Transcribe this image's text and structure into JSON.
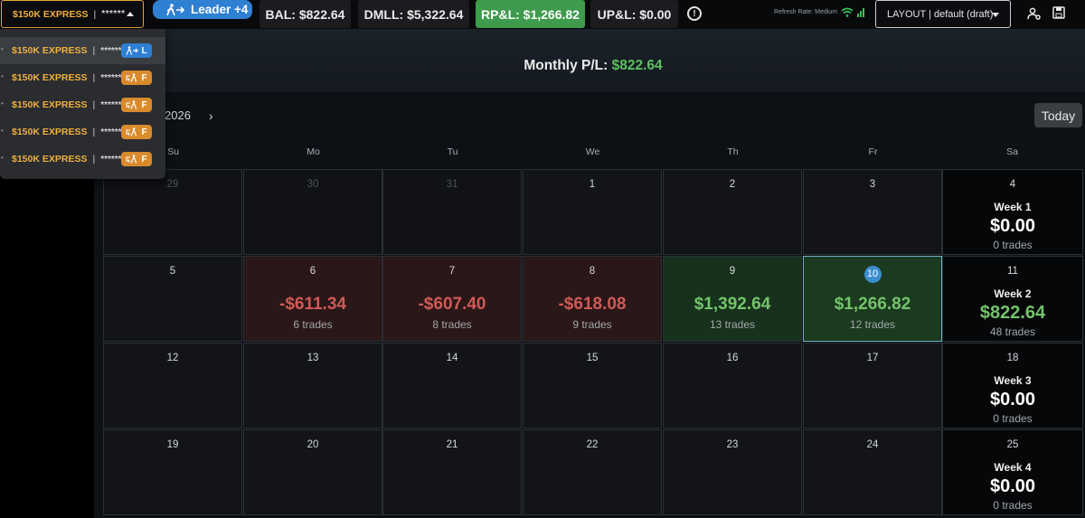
{
  "topbar": {
    "account": {
      "name": "$150K EXPRESS",
      "separator": "|",
      "masked": "******"
    },
    "leader_label": "Leader +4",
    "stats": [
      {
        "label": "BAL: $822.64"
      },
      {
        "label": "DMLL: $5,322.64"
      },
      {
        "label": "RP&L: $1,266.82"
      },
      {
        "label": "UP&L: $0.00"
      }
    ],
    "refresh_rate": "Refresh Rate: Medium",
    "layout": "LAYOUT | default (draft)"
  },
  "dropdown": {
    "items": [
      {
        "name": "$150K EXPRESS",
        "masked": "******",
        "role": "L",
        "role_type": "leader"
      },
      {
        "name": "$150K EXPRESS",
        "masked": "******",
        "role": "F",
        "role_type": "follower"
      },
      {
        "name": "$150K EXPRESS",
        "masked": "******",
        "role": "F",
        "role_type": "follower"
      },
      {
        "name": "$150K EXPRESS",
        "masked": "******",
        "role": "F",
        "role_type": "follower"
      },
      {
        "name": "$150K EXPRESS",
        "masked": "******",
        "role": "F",
        "role_type": "follower"
      }
    ]
  },
  "calendar": {
    "monthly_label": "Monthly P/L:",
    "monthly_value": "$822.64",
    "month_label": "2026",
    "today_label": "Today",
    "days_of_week": [
      "Su",
      "Mo",
      "Tu",
      "We",
      "Th",
      "Fr",
      "Sa"
    ],
    "weeks": [
      {
        "days": [
          {
            "day": "29",
            "state": "outside"
          },
          {
            "day": "30",
            "state": "outside"
          },
          {
            "day": "31",
            "state": "outside"
          },
          {
            "day": "1",
            "state": "normal"
          },
          {
            "day": "2",
            "state": "normal"
          },
          {
            "day": "3",
            "state": "normal"
          }
        ],
        "summary": {
          "day": "4",
          "label": "Week 1",
          "amount": "$0.00",
          "trades": "0 trades",
          "positive": false
        }
      },
      {
        "days": [
          {
            "day": "5",
            "state": "normal"
          },
          {
            "day": "6",
            "state": "loss",
            "amount": "-$611.34",
            "trades": "6 trades"
          },
          {
            "day": "7",
            "state": "loss",
            "amount": "-$607.40",
            "trades": "8 trades"
          },
          {
            "day": "8",
            "state": "loss",
            "amount": "-$618.08",
            "trades": "9 trades"
          },
          {
            "day": "9",
            "state": "win",
            "amount": "$1,392.64",
            "trades": "13 trades"
          },
          {
            "day": "10",
            "state": "today",
            "amount": "$1,266.82",
            "trades": "12 trades"
          }
        ],
        "summary": {
          "day": "11",
          "label": "Week 2",
          "amount": "$822.64",
          "trades": "48 trades",
          "positive": true
        }
      },
      {
        "days": [
          {
            "day": "12",
            "state": "normal"
          },
          {
            "day": "13",
            "state": "normal"
          },
          {
            "day": "14",
            "state": "normal"
          },
          {
            "day": "15",
            "state": "normal"
          },
          {
            "day": "16",
            "state": "normal"
          },
          {
            "day": "17",
            "state": "normal"
          }
        ],
        "summary": {
          "day": "18",
          "label": "Week 3",
          "amount": "$0.00",
          "trades": "0 trades",
          "positive": false
        }
      },
      {
        "days": [
          {
            "day": "19",
            "state": "normal"
          },
          {
            "day": "20",
            "state": "normal"
          },
          {
            "day": "21",
            "state": "normal"
          },
          {
            "day": "22",
            "state": "normal"
          },
          {
            "day": "23",
            "state": "normal"
          },
          {
            "day": "24",
            "state": "normal"
          }
        ],
        "summary": {
          "day": "25",
          "label": "Week 4",
          "amount": "$0.00",
          "trades": "0 trades",
          "positive": false
        }
      }
    ]
  },
  "colors": {
    "accent_orange": "#f0b03c",
    "leader_blue": "#2f7fd3",
    "profit_green": "#74c36b",
    "loss_red": "#d05a57",
    "rpl_green": "#3e9a4c"
  },
  "icons": {
    "leader": "person-arrow-icon",
    "follower": "person-return-icon",
    "info": "exclamation-circle-icon",
    "wifi": "wifi-icon",
    "signal": "signal-bars-icon",
    "settings": "user-settings-icon",
    "save": "save-icon"
  }
}
